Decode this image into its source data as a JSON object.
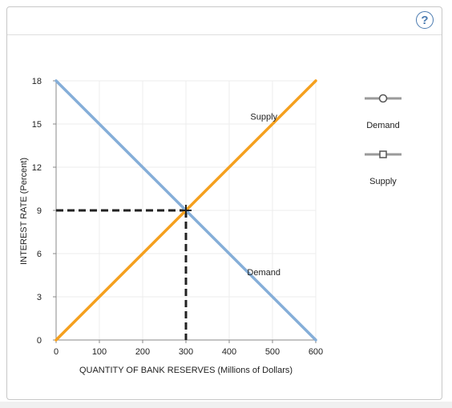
{
  "help": {
    "label": "?"
  },
  "legend": {
    "items": [
      {
        "label": "Demand",
        "marker": "circle",
        "color": "#9a9a9a"
      },
      {
        "label": "Supply",
        "marker": "square",
        "color": "#9a9a9a"
      }
    ]
  },
  "chart_data": {
    "type": "line",
    "xlabel": "QUANTITY OF BANK RESERVES (Millions of Dollars)",
    "ylabel": "INTEREST RATE (Percent)",
    "xlim": [
      0,
      600
    ],
    "ylim": [
      0,
      18
    ],
    "xticks": [
      0,
      100,
      200,
      300,
      400,
      500,
      600
    ],
    "yticks": [
      0,
      3,
      6,
      9,
      12,
      15,
      18
    ],
    "grid": true,
    "series": [
      {
        "name": "Demand",
        "color": "#85aed8",
        "points": [
          [
            0,
            18
          ],
          [
            600,
            0
          ]
        ]
      },
      {
        "name": "Supply",
        "color": "#f5a01e",
        "points": [
          [
            0,
            0
          ],
          [
            600,
            18
          ]
        ]
      }
    ],
    "curve_labels": [
      {
        "text": "Supply",
        "x": 480,
        "y": 15.3
      },
      {
        "text": "Demand",
        "x": 480,
        "y": 4.5
      }
    ],
    "equilibrium": {
      "x": 300,
      "y": 9,
      "marker": "cross"
    }
  }
}
